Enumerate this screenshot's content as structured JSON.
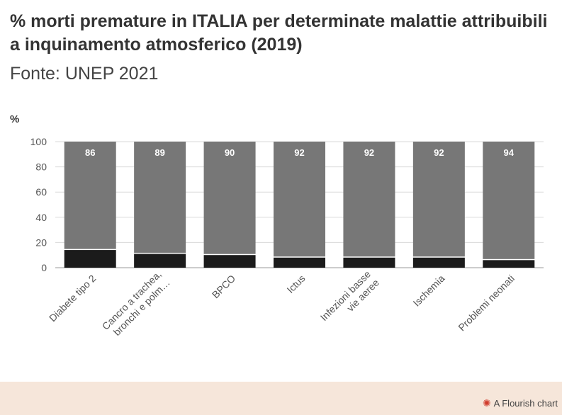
{
  "title": "% morti premature in ITALIA per determinate malattie attribuibili a inquinamento atmosferico (2019)",
  "subtitle": "Fonte: UNEP 2021",
  "footer": {
    "credit": "A Flourish chart",
    "icon": "flourish-logo-icon"
  },
  "chart_data": {
    "type": "bar",
    "stacked": true,
    "ylabel": "%",
    "ylim": [
      0,
      100
    ],
    "yticks": [
      0,
      20,
      40,
      60,
      80,
      100
    ],
    "grid": true,
    "categories": [
      [
        "Diabete tipo 2"
      ],
      [
        "Cancro a trachea,",
        "bronchi e polm…"
      ],
      [
        "BPCO"
      ],
      [
        "Ictus"
      ],
      [
        "Infezioni basse",
        "vie aeree"
      ],
      [
        "Ischemia"
      ],
      [
        "Problemi neonati"
      ]
    ],
    "series": [
      {
        "values": [
          14,
          11,
          10,
          8,
          8,
          8,
          6
        ],
        "color": "#1b1b1b"
      },
      {
        "values": [
          86,
          89,
          90,
          92,
          92,
          92,
          94
        ],
        "color": "#777777",
        "show_labels": true
      }
    ]
  }
}
